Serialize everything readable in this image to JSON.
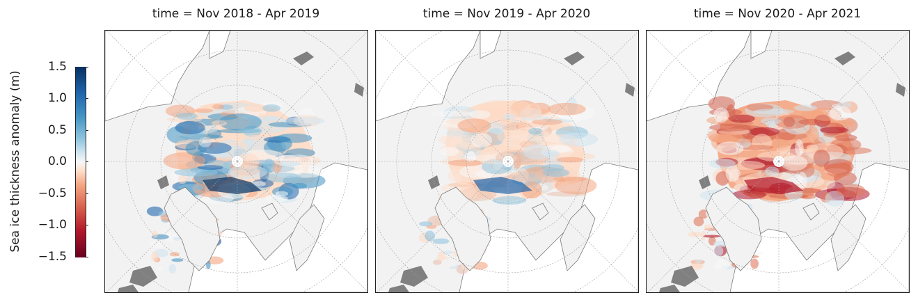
{
  "colorbar": {
    "label": "Sea ice thickness anomaly (m)",
    "ticks": [
      "1.5",
      "1.0",
      "0.5",
      "0.0",
      "−0.5",
      "−1.0",
      "−1.5"
    ],
    "min": -1.5,
    "max": 1.5,
    "colors": {
      "high": "#053061",
      "mid": "#f7f7f7",
      "low": "#67001f"
    }
  },
  "panels": [
    {
      "title": "time = Nov 2018 - Apr 2019",
      "pattern": "blue-atlantic"
    },
    {
      "title": "time = Nov 2019 - Apr 2020",
      "pattern": "mixed-blue-center"
    },
    {
      "title": "time = Nov 2020 - Apr 2021",
      "pattern": "red-center"
    }
  ],
  "colors": {
    "land": "#f2f2f2",
    "ocean": "#ffffff",
    "lakes": "#808080",
    "coast": "#7a7a7a",
    "grid": "#a0a0a0"
  }
}
